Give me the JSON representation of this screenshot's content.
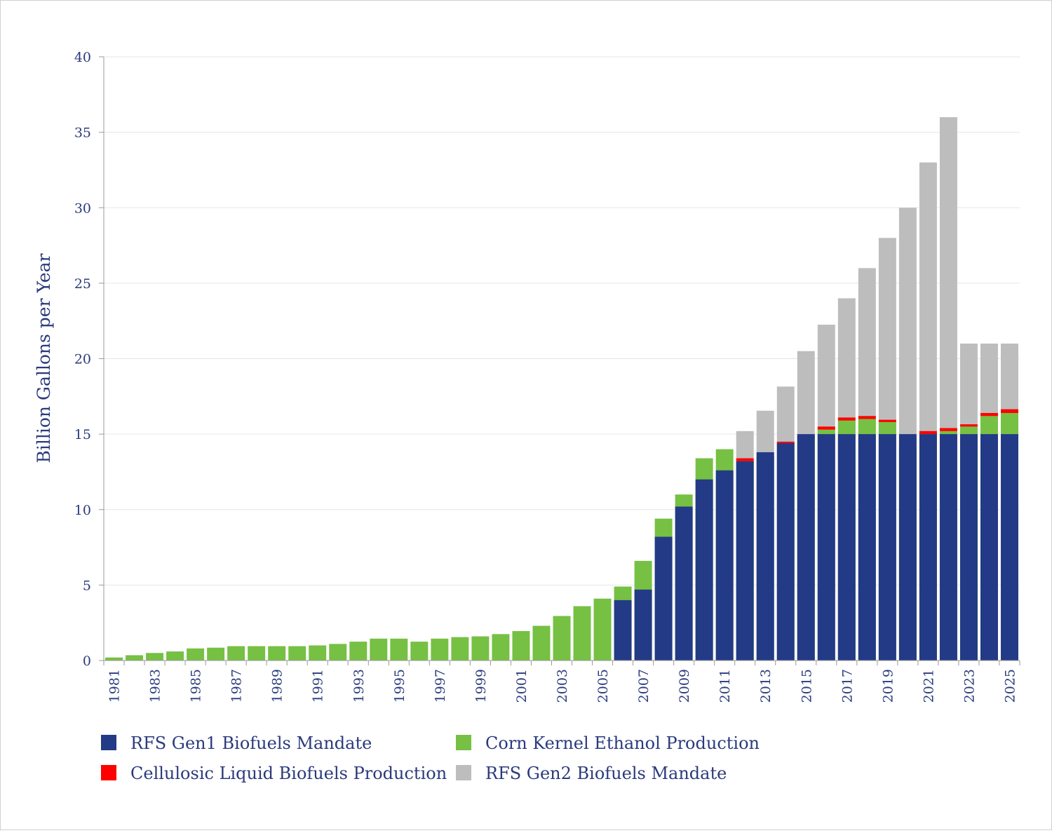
{
  "chart_data": {
    "type": "bar",
    "stacked": "overlay",
    "title": "",
    "xlabel": "",
    "ylabel": "Billion Gallons per Year",
    "ylim": [
      0,
      40
    ],
    "yticks": [
      0,
      5,
      10,
      15,
      20,
      25,
      30,
      35,
      40
    ],
    "grid": true,
    "categories": [
      "1981",
      "1982",
      "1983",
      "1984",
      "1985",
      "1986",
      "1987",
      "1988",
      "1989",
      "1990",
      "1991",
      "1992",
      "1993",
      "1994",
      "1995",
      "1996",
      "1997",
      "1998",
      "1999",
      "2000",
      "2001",
      "2002",
      "2003",
      "2004",
      "2005",
      "2006",
      "2007",
      "2008",
      "2009",
      "2010",
      "2011",
      "2012",
      "2013",
      "2014",
      "2015",
      "2016",
      "2017",
      "2018",
      "2019",
      "2020",
      "2021",
      "2022",
      "2023",
      "2024",
      "2025"
    ],
    "xtick_labels": [
      "1981",
      "1983",
      "1985",
      "1987",
      "1989",
      "1991",
      "1993",
      "1995",
      "1997",
      "1999",
      "2001",
      "2003",
      "2005",
      "2007",
      "2009",
      "2011",
      "2013",
      "2015",
      "2017",
      "2019",
      "2021",
      "2023",
      "2025"
    ],
    "series": [
      {
        "name": "RFS Gen2 Biofuels Mandate",
        "color": "#bdbdbd",
        "values": [
          null,
          null,
          null,
          null,
          null,
          null,
          null,
          null,
          null,
          null,
          null,
          null,
          null,
          null,
          null,
          null,
          null,
          null,
          null,
          null,
          null,
          null,
          null,
          null,
          null,
          null,
          null,
          null,
          null,
          null,
          null,
          15.2,
          16.55,
          18.15,
          20.5,
          22.25,
          24.0,
          26.0,
          28.0,
          30.0,
          33.0,
          36.0,
          21.0,
          21.0,
          21.0
        ]
      },
      {
        "name": "Corn Kernel Ethanol Production",
        "color": "#76c043",
        "values": [
          0.2,
          0.35,
          0.5,
          0.6,
          0.8,
          0.85,
          0.95,
          0.95,
          0.95,
          0.95,
          1.0,
          1.1,
          1.25,
          1.45,
          1.45,
          1.25,
          1.45,
          1.55,
          1.6,
          1.75,
          1.95,
          2.3,
          2.95,
          3.6,
          4.1,
          4.9,
          6.6,
          9.4,
          11.0,
          13.4,
          14.0,
          13.2,
          13.3,
          14.3,
          14.7,
          15.3,
          15.9,
          16.0,
          15.8,
          13.85,
          15.0,
          15.2,
          15.5,
          16.2,
          16.4
        ]
      },
      {
        "name": "Cellulosic Liquid Biofuels Production",
        "color": "#ff0000",
        "values": [
          null,
          null,
          null,
          null,
          null,
          null,
          null,
          null,
          null,
          null,
          null,
          null,
          null,
          null,
          null,
          null,
          null,
          null,
          null,
          null,
          null,
          null,
          null,
          null,
          null,
          null,
          null,
          null,
          null,
          null,
          null,
          0.2,
          0.2,
          0.2,
          0.2,
          0.2,
          0.2,
          0.2,
          0.15,
          0.15,
          0.2,
          0.2,
          0.15,
          0.2,
          0.25
        ]
      },
      {
        "name": "RFS Gen1 Biofuels Mandate",
        "color": "#233a86",
        "values": [
          null,
          null,
          null,
          null,
          null,
          null,
          null,
          null,
          null,
          null,
          null,
          null,
          null,
          null,
          null,
          null,
          null,
          null,
          null,
          null,
          null,
          null,
          null,
          null,
          null,
          4.0,
          4.7,
          8.2,
          10.2,
          12.0,
          12.6,
          13.2,
          13.8,
          14.4,
          15.0,
          15.0,
          15.0,
          15.0,
          15.0,
          15.0,
          15.0,
          15.0,
          15.0,
          15.0,
          15.0
        ]
      }
    ],
    "legend": {
      "placement": "bottom",
      "entries": [
        {
          "label": "RFS Gen1 Biofuels Mandate",
          "color": "#233a86"
        },
        {
          "label": "Corn Kernel Ethanol Production",
          "color": "#76c043"
        },
        {
          "label": "Cellulosic Liquid Biofuels Production",
          "color": "#ff0000"
        },
        {
          "label": "RFS Gen2 Biofuels Mandate",
          "color": "#bdbdbd"
        }
      ]
    }
  }
}
